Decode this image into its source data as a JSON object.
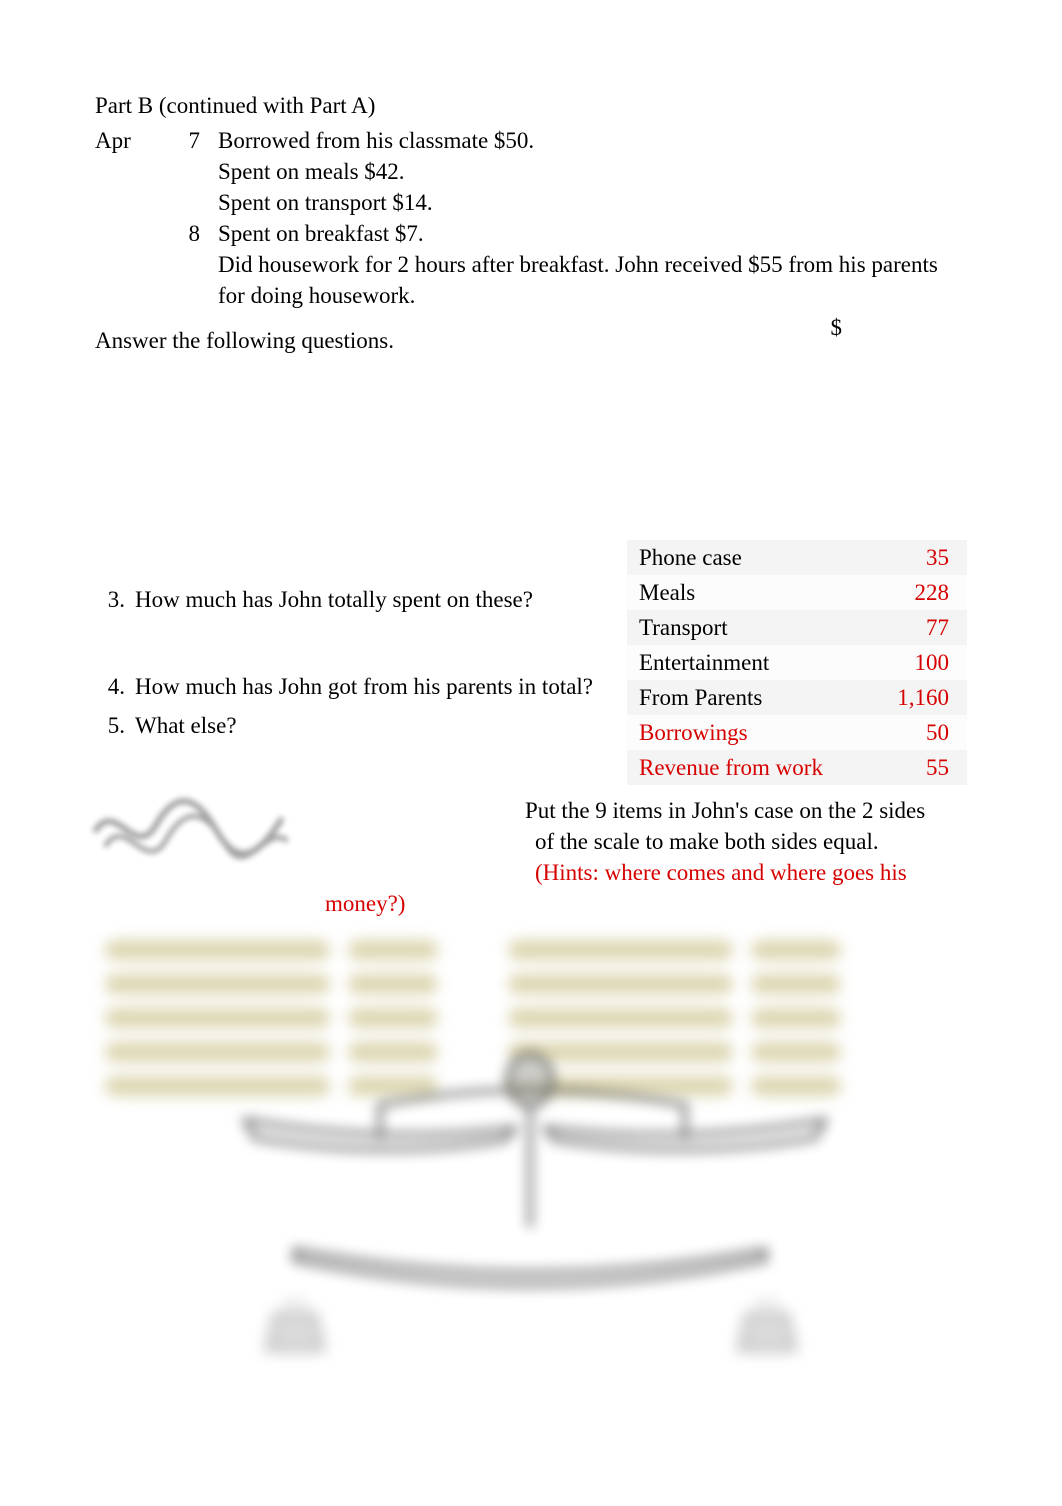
{
  "header": {
    "partb": "Part B (continued with Part A)"
  },
  "journal": {
    "month": "Apr",
    "entries": [
      {
        "day": "7",
        "lines": [
          "Borrowed from his classmate $50.",
          "Spent on meals $42.",
          "Spent on transport $14."
        ]
      },
      {
        "day": "8",
        "lines": [
          "Spent on breakfast $7.",
          "Did housework for 2 hours after breakfast. John received $55 from his parents for doing housework."
        ]
      }
    ]
  },
  "answer_prompt": "Answer the following questions.",
  "dollar_header": "$",
  "questions": {
    "q3_num": "3.",
    "q3": "How much has John totally spent on these?",
    "q4_num": "4.",
    "q4": "How much has John got from his parents in total?",
    "q5_num": "5.",
    "q5": "What else?"
  },
  "table": {
    "rows": [
      {
        "label": "Phone case",
        "value": "35",
        "label_red": false
      },
      {
        "label": "Meals",
        "value": "228",
        "label_red": false
      },
      {
        "label": "Transport",
        "value": "77",
        "label_red": false
      },
      {
        "label": "Entertainment",
        "value": "100",
        "label_red": false
      },
      {
        "label": "From Parents",
        "value": "1,160",
        "label_red": false
      },
      {
        "label": "Borrowings",
        "value": "50",
        "label_red": true
      },
      {
        "label": "Revenue from work",
        "value": "55",
        "label_red": true
      }
    ]
  },
  "scale_text": {
    "line1": "Put the 9 items in John's case on the 2 sides",
    "line2": "of the scale to make both sides equal.",
    "line3": "(Hints: where comes and where goes his",
    "line4": "money?)"
  },
  "colors": {
    "red": "#d60000",
    "row_a": "#f4f4f4",
    "row_b": "#fcfcfc",
    "pill": "#d6cfa3",
    "scale_stroke": "#555555"
  },
  "blur_rows_per_side": 5
}
